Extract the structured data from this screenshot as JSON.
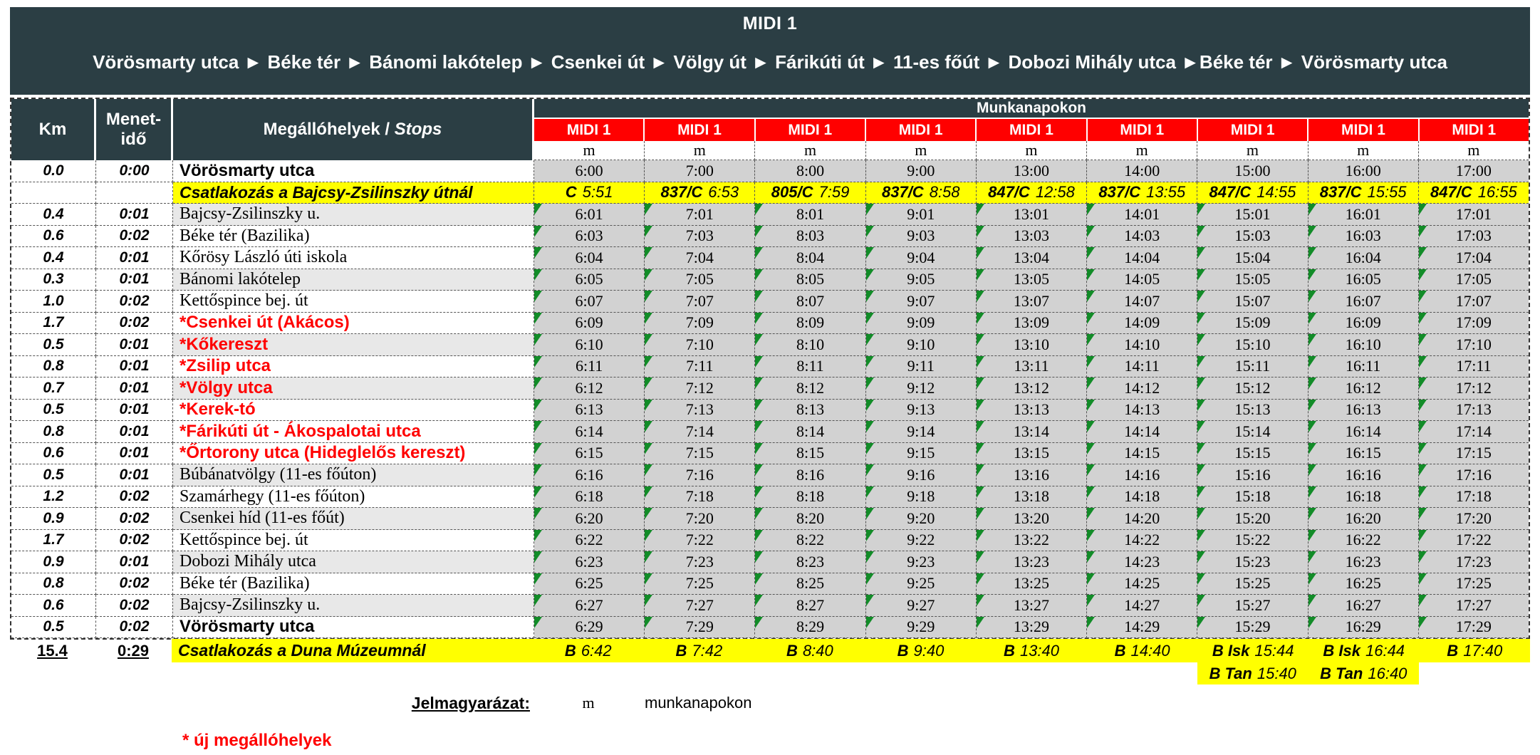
{
  "title": "MIDI 1",
  "subtitle": "Vörösmarty utca ► Béke tér ► Bánomi lakótelep ► Csenkei út ► Völgy út ► Fárikúti út ► 11-es főút ► Dobozi Mihály utca ►Béke tér ► Vörösmarty utca",
  "colors": {
    "header_dark": "#2B3E44",
    "route_red": "#FF0000",
    "connection_yellow": "#FFFF00",
    "time_cell_gray": "#D2D2D2",
    "row_shade_gray": "#E8E8E8",
    "note_triangle_green": "#128C28"
  },
  "table": {
    "headers": {
      "km": "Km",
      "travel_time_line1": "Menet-",
      "travel_time_line2": "idő",
      "stops_hu": "Megállóhelyek /",
      "stops_en": "Stops",
      "day_group": "Munkanapokon",
      "route_label": "MIDI 1",
      "day_code": "m"
    },
    "rows": [
      {
        "type": "times",
        "km": "0.0",
        "time": "0:00",
        "stop": "Vörösmarty utca",
        "stop_style": "bold",
        "shaded": false,
        "triangle": false,
        "times": [
          "6:00",
          "7:00",
          "8:00",
          "9:00",
          "13:00",
          "14:00",
          "15:00",
          "16:00",
          "17:00"
        ]
      },
      {
        "type": "connection",
        "stop": "Csatlakozás a Bajcsy-Zsilinszky útnál",
        "cells": [
          [
            "C",
            "5:51"
          ],
          [
            "837/C",
            "6:53"
          ],
          [
            "805/C",
            "7:59"
          ],
          [
            "837/C",
            "8:58"
          ],
          [
            "847/C",
            "12:58"
          ],
          [
            "837/C",
            "13:55"
          ],
          [
            "847/C",
            "14:55"
          ],
          [
            "837/C",
            "15:55"
          ],
          [
            "847/C",
            "16:55"
          ]
        ]
      },
      {
        "type": "times",
        "km": "0.4",
        "time": "0:01",
        "stop": "Bajcsy-Zsilinszky u.",
        "stop_style": "normal",
        "shaded": true,
        "triangle": true,
        "times": [
          "6:01",
          "7:01",
          "8:01",
          "9:01",
          "13:01",
          "14:01",
          "15:01",
          "16:01",
          "17:01"
        ]
      },
      {
        "type": "times",
        "km": "0.6",
        "time": "0:02",
        "stop": "Béke tér (Bazilika)",
        "stop_style": "normal",
        "shaded": false,
        "triangle": true,
        "times": [
          "6:03",
          "7:03",
          "8:03",
          "9:03",
          "13:03",
          "14:03",
          "15:03",
          "16:03",
          "17:03"
        ]
      },
      {
        "type": "times",
        "km": "0.4",
        "time": "0:01",
        "stop": "Kőrösy László úti iskola",
        "stop_style": "normal",
        "shaded": false,
        "triangle": true,
        "times": [
          "6:04",
          "7:04",
          "8:04",
          "9:04",
          "13:04",
          "14:04",
          "15:04",
          "16:04",
          "17:04"
        ]
      },
      {
        "type": "times",
        "km": "0.3",
        "time": "0:01",
        "stop": "Bánomi lakótelep",
        "stop_style": "normal",
        "shaded": true,
        "triangle": true,
        "times": [
          "6:05",
          "7:05",
          "8:05",
          "9:05",
          "13:05",
          "14:05",
          "15:05",
          "16:05",
          "17:05"
        ]
      },
      {
        "type": "times",
        "km": "1.0",
        "time": "0:02",
        "stop": "Kettőspince bej. út",
        "stop_style": "normal",
        "shaded": false,
        "triangle": true,
        "times": [
          "6:07",
          "7:07",
          "8:07",
          "9:07",
          "13:07",
          "14:07",
          "15:07",
          "16:07",
          "17:07"
        ]
      },
      {
        "type": "times",
        "km": "1.7",
        "time": "0:02",
        "stop": "*Csenkei út (Akácos)",
        "stop_style": "red",
        "shaded": false,
        "triangle": true,
        "times": [
          "6:09",
          "7:09",
          "8:09",
          "9:09",
          "13:09",
          "14:09",
          "15:09",
          "16:09",
          "17:09"
        ]
      },
      {
        "type": "times",
        "km": "0.5",
        "time": "0:01",
        "stop": "*Kőkereszt",
        "stop_style": "red",
        "shaded": true,
        "triangle": true,
        "times": [
          "6:10",
          "7:10",
          "8:10",
          "9:10",
          "13:10",
          "14:10",
          "15:10",
          "16:10",
          "17:10"
        ]
      },
      {
        "type": "times",
        "km": "0.8",
        "time": "0:01",
        "stop": "*Zsilip utca",
        "stop_style": "red",
        "shaded": false,
        "triangle": true,
        "times": [
          "6:11",
          "7:11",
          "8:11",
          "9:11",
          "13:11",
          "14:11",
          "15:11",
          "16:11",
          "17:11"
        ]
      },
      {
        "type": "times",
        "km": "0.7",
        "time": "0:01",
        "stop": "*Völgy utca",
        "stop_style": "red",
        "shaded": true,
        "triangle": true,
        "times": [
          "6:12",
          "7:12",
          "8:12",
          "9:12",
          "13:12",
          "14:12",
          "15:12",
          "16:12",
          "17:12"
        ]
      },
      {
        "type": "times",
        "km": "0.5",
        "time": "0:01",
        "stop": "*Kerek-tó",
        "stop_style": "red",
        "shaded": false,
        "triangle": true,
        "times": [
          "6:13",
          "7:13",
          "8:13",
          "9:13",
          "13:13",
          "14:13",
          "15:13",
          "16:13",
          "17:13"
        ]
      },
      {
        "type": "times",
        "km": "0.8",
        "time": "0:01",
        "stop": "*Fárikúti út - Ákospalotai utca",
        "stop_style": "red",
        "shaded": false,
        "triangle": true,
        "times": [
          "6:14",
          "7:14",
          "8:14",
          "9:14",
          "13:14",
          "14:14",
          "15:14",
          "16:14",
          "17:14"
        ]
      },
      {
        "type": "times",
        "km": "0.6",
        "time": "0:01",
        "stop": "*Őrtorony utca (Hideglelős kereszt)",
        "stop_style": "red",
        "shaded": false,
        "triangle": true,
        "times": [
          "6:15",
          "7:15",
          "8:15",
          "9:15",
          "13:15",
          "14:15",
          "15:15",
          "16:15",
          "17:15"
        ]
      },
      {
        "type": "times",
        "km": "0.5",
        "time": "0:01",
        "stop": "Búbánatvölgy (11-es főúton)",
        "stop_style": "normal",
        "shaded": true,
        "triangle": true,
        "times": [
          "6:16",
          "7:16",
          "8:16",
          "9:16",
          "13:16",
          "14:16",
          "15:16",
          "16:16",
          "17:16"
        ]
      },
      {
        "type": "times",
        "km": "1.2",
        "time": "0:02",
        "stop": "Szamárhegy (11-es főúton)",
        "stop_style": "normal",
        "shaded": false,
        "triangle": true,
        "times": [
          "6:18",
          "7:18",
          "8:18",
          "9:18",
          "13:18",
          "14:18",
          "15:18",
          "16:18",
          "17:18"
        ]
      },
      {
        "type": "times",
        "km": "0.9",
        "time": "0:02",
        "stop": "Csenkei híd (11-es főút)",
        "stop_style": "normal",
        "shaded": true,
        "triangle": true,
        "times": [
          "6:20",
          "7:20",
          "8:20",
          "9:20",
          "13:20",
          "14:20",
          "15:20",
          "16:20",
          "17:20"
        ]
      },
      {
        "type": "times",
        "km": "1.7",
        "time": "0:02",
        "stop": "Kettőspince bej. út",
        "stop_style": "normal",
        "shaded": false,
        "triangle": true,
        "times": [
          "6:22",
          "7:22",
          "8:22",
          "9:22",
          "13:22",
          "14:22",
          "15:22",
          "16:22",
          "17:22"
        ]
      },
      {
        "type": "times",
        "km": "0.9",
        "time": "0:01",
        "stop": "Dobozi Mihály utca",
        "stop_style": "normal",
        "shaded": true,
        "triangle": true,
        "times": [
          "6:23",
          "7:23",
          "8:23",
          "9:23",
          "13:23",
          "14:23",
          "15:23",
          "16:23",
          "17:23"
        ]
      },
      {
        "type": "times",
        "km": "0.8",
        "time": "0:02",
        "stop": "Béke tér (Bazilika)",
        "stop_style": "normal",
        "shaded": false,
        "triangle": true,
        "times": [
          "6:25",
          "7:25",
          "8:25",
          "9:25",
          "13:25",
          "14:25",
          "15:25",
          "16:25",
          "17:25"
        ]
      },
      {
        "type": "times",
        "km": "0.6",
        "time": "0:02",
        "stop": "Bajcsy-Zsilinszky u.",
        "stop_style": "normal",
        "shaded": true,
        "triangle": true,
        "times": [
          "6:27",
          "7:27",
          "8:27",
          "9:27",
          "13:27",
          "14:27",
          "15:27",
          "16:27",
          "17:27"
        ]
      },
      {
        "type": "times",
        "km": "0.5",
        "time": "0:02",
        "stop": "Vörösmarty utca",
        "stop_style": "bold",
        "shaded": false,
        "triangle": true,
        "times": [
          "6:29",
          "7:29",
          "8:29",
          "9:29",
          "13:29",
          "14:29",
          "15:29",
          "16:29",
          "17:29"
        ]
      }
    ],
    "bottom_connection": {
      "km": "15.4",
      "time": "0:29",
      "stop": "Csatlakozás a Duna Múzeumnál",
      "cells": [
        [
          "B",
          "6:42"
        ],
        [
          "B",
          "7:42"
        ],
        [
          "B",
          "8:40"
        ],
        [
          "B",
          "9:40"
        ],
        [
          "B",
          "13:40"
        ],
        [
          "B",
          "14:40"
        ],
        [
          "B Isk",
          "15:44"
        ],
        [
          "B Isk",
          "16:44"
        ],
        [
          "B",
          "17:40"
        ]
      ]
    },
    "school_variants": {
      "cells": [
        {
          "col": 7,
          "code": "B Tan",
          "time": "15:40"
        },
        {
          "col": 8,
          "code": "B Tan",
          "time": "16:40"
        }
      ]
    }
  },
  "legend": {
    "heading": "Jelmagyarázat:",
    "symbol": "m",
    "meaning": "munkanapokon"
  },
  "footnote": "* új megállóhelyek"
}
